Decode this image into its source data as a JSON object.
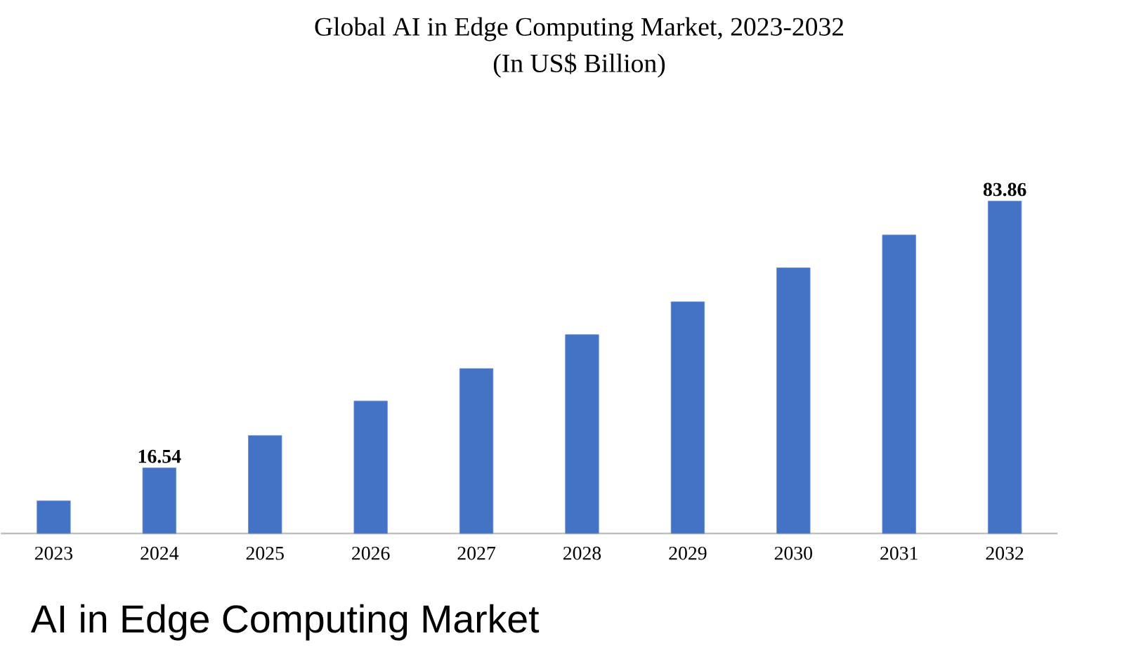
{
  "chart_data": {
    "type": "bar",
    "title": "Global AI in Edge Computing Market, 2023-2032",
    "subtitle": "(In US$ Billion)",
    "categories": [
      "2023",
      "2024",
      "2025",
      "2026",
      "2027",
      "2028",
      "2029",
      "2030",
      "2031",
      "2032"
    ],
    "values": [
      8.25,
      16.54,
      24.71,
      33.43,
      41.6,
      50.16,
      58.45,
      67.01,
      75.3,
      83.86
    ],
    "value_labels": [
      null,
      "16.54",
      null,
      null,
      null,
      null,
      null,
      null,
      null,
      "83.86"
    ],
    "color": "#4472c4",
    "annotations": [
      "AI in Edge Computing Market"
    ]
  }
}
